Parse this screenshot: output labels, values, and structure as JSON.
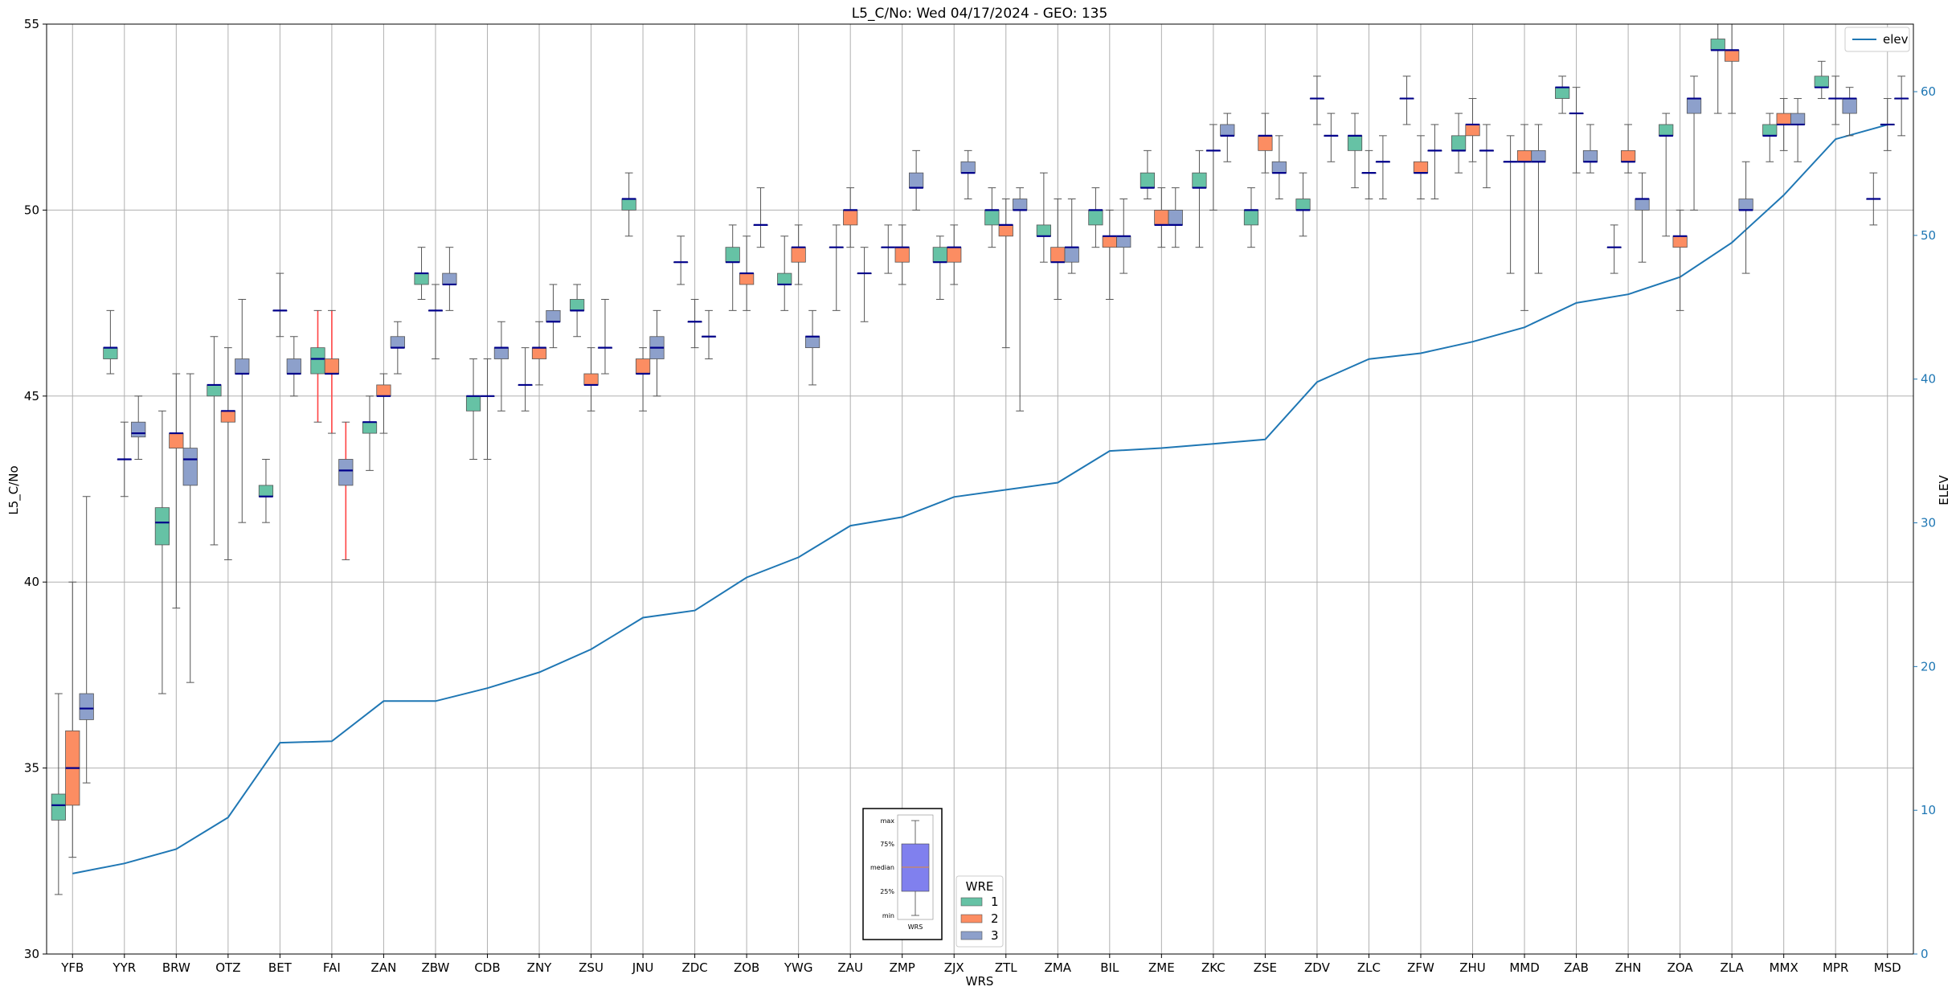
{
  "chart_data": {
    "type": "box",
    "title": "L5_C/No: Wed 04/17/2024 - GEO: 135",
    "xlabel": "WRS",
    "ylabel": "L5_C/No",
    "ylabel_right": "ELEV",
    "ylim": [
      30,
      55
    ],
    "ylim_right": [
      0,
      64.7
    ],
    "yticks": [
      30,
      35,
      40,
      45,
      50,
      55
    ],
    "yticks_right": [
      0,
      10,
      20,
      30,
      40,
      50,
      60
    ],
    "grid": true,
    "categories": [
      "YFB",
      "YYR",
      "BRW",
      "OTZ",
      "BET",
      "FAI",
      "ZAN",
      "ZBW",
      "CDB",
      "ZNY",
      "ZSU",
      "JNU",
      "ZDC",
      "ZOB",
      "YWG",
      "ZAU",
      "ZMP",
      "ZJX",
      "ZTL",
      "ZMA",
      "BIL",
      "ZME",
      "ZKC",
      "ZSE",
      "ZDV",
      "ZLC",
      "ZFW",
      "ZHU",
      "MMD",
      "ZAB",
      "ZHN",
      "ZOA",
      "ZLA",
      "MMX",
      "MPR",
      "MSD"
    ],
    "legend": {
      "title": "WRE",
      "entries": [
        "1",
        "2",
        "3"
      ],
      "placement": "bottom-center"
    },
    "line_legend": {
      "entries": [
        "elev"
      ],
      "placement": "upper-right"
    },
    "colors": {
      "wre1": "#66c2a5",
      "wre2": "#fc8d62",
      "wre3": "#8da0cb",
      "median": "#00008b",
      "whisker": "#555555",
      "elev": "#1f77b4",
      "highlight_whisker": "#ff4444"
    },
    "elev": [
      5.6,
      6.3,
      7.3,
      9.5,
      14.7,
      14.8,
      17.6,
      17.6,
      18.5,
      19.6,
      21.2,
      23.4,
      23.9,
      26.2,
      27.6,
      29.8,
      30.4,
      31.8,
      32.3,
      32.8,
      35.0,
      35.2,
      35.5,
      35.8,
      39.8,
      41.4,
      41.8,
      42.6,
      43.6,
      45.3,
      45.9,
      47.1,
      49.5,
      52.8,
      56.7,
      57.7
    ],
    "boxes": [
      {
        "cat": "YFB",
        "wre": 1,
        "min": 31.6,
        "q1": 33.6,
        "median": 34.0,
        "q3": 34.3,
        "max": 37.0
      },
      {
        "cat": "YFB",
        "wre": 2,
        "min": 32.6,
        "q1": 34.0,
        "median": 35.0,
        "q3": 36.0,
        "max": 40.0
      },
      {
        "cat": "YFB",
        "wre": 3,
        "min": 34.6,
        "q1": 36.3,
        "median": 36.6,
        "q3": 37.0,
        "max": 42.3
      },
      {
        "cat": "YYR",
        "wre": 1,
        "min": 45.6,
        "q1": 46.0,
        "median": 46.3,
        "q3": 46.3,
        "max": 47.3
      },
      {
        "cat": "YYR",
        "wre": 2,
        "min": 42.3,
        "q1": 43.3,
        "median": 43.3,
        "q3": 43.3,
        "max": 44.3
      },
      {
        "cat": "YYR",
        "wre": 3,
        "min": 43.3,
        "q1": 43.9,
        "median": 44.0,
        "q3": 44.3,
        "max": 45.0
      },
      {
        "cat": "BRW",
        "wre": 1,
        "min": 37.0,
        "q1": 41.0,
        "median": 41.6,
        "q3": 42.0,
        "max": 44.6
      },
      {
        "cat": "BRW",
        "wre": 2,
        "min": 39.3,
        "q1": 43.6,
        "median": 44.0,
        "q3": 44.0,
        "max": 45.6
      },
      {
        "cat": "BRW",
        "wre": 3,
        "min": 37.3,
        "q1": 42.6,
        "median": 43.3,
        "q3": 43.6,
        "max": 45.6
      },
      {
        "cat": "OTZ",
        "wre": 1,
        "min": 41.0,
        "q1": 45.0,
        "median": 45.3,
        "q3": 45.3,
        "max": 46.6
      },
      {
        "cat": "OTZ",
        "wre": 2,
        "min": 40.6,
        "q1": 44.3,
        "median": 44.6,
        "q3": 44.6,
        "max": 46.3
      },
      {
        "cat": "OTZ",
        "wre": 3,
        "min": 41.6,
        "q1": 45.6,
        "median": 45.6,
        "q3": 46.0,
        "max": 47.6
      },
      {
        "cat": "BET",
        "wre": 1,
        "min": 41.6,
        "q1": 42.3,
        "median": 42.3,
        "q3": 42.6,
        "max": 43.3
      },
      {
        "cat": "BET",
        "wre": 2,
        "min": 46.6,
        "q1": 47.3,
        "median": 47.3,
        "q3": 47.3,
        "max": 48.3
      },
      {
        "cat": "BET",
        "wre": 3,
        "min": 45.0,
        "q1": 45.6,
        "median": 45.6,
        "q3": 46.0,
        "max": 46.6
      },
      {
        "cat": "FAI",
        "wre": 1,
        "min": 44.3,
        "q1": 45.6,
        "median": 46.0,
        "q3": 46.3,
        "max": 47.3,
        "red": true
      },
      {
        "cat": "FAI",
        "wre": 2,
        "min": 44.0,
        "q1": 45.6,
        "median": 45.6,
        "q3": 46.0,
        "max": 47.3,
        "red": true
      },
      {
        "cat": "FAI",
        "wre": 3,
        "min": 40.6,
        "q1": 42.6,
        "median": 43.0,
        "q3": 43.3,
        "max": 44.3,
        "red": true
      },
      {
        "cat": "ZAN",
        "wre": 1,
        "min": 43.0,
        "q1": 44.0,
        "median": 44.3,
        "q3": 44.3,
        "max": 45.0
      },
      {
        "cat": "ZAN",
        "wre": 2,
        "min": 44.0,
        "q1": 45.0,
        "median": 45.0,
        "q3": 45.3,
        "max": 45.6
      },
      {
        "cat": "ZAN",
        "wre": 3,
        "min": 45.6,
        "q1": 46.3,
        "median": 46.3,
        "q3": 46.6,
        "max": 47.0
      },
      {
        "cat": "ZBW",
        "wre": 1,
        "min": 47.6,
        "q1": 48.0,
        "median": 48.3,
        "q3": 48.3,
        "max": 49.0
      },
      {
        "cat": "ZBW",
        "wre": 2,
        "min": 46.0,
        "q1": 47.3,
        "median": 47.3,
        "q3": 47.3,
        "max": 48.0
      },
      {
        "cat": "ZBW",
        "wre": 3,
        "min": 47.3,
        "q1": 48.0,
        "median": 48.0,
        "q3": 48.3,
        "max": 49.0
      },
      {
        "cat": "CDB",
        "wre": 1,
        "min": 43.3,
        "q1": 44.6,
        "median": 45.0,
        "q3": 45.0,
        "max": 46.0
      },
      {
        "cat": "CDB",
        "wre": 2,
        "min": 43.3,
        "q1": 45.0,
        "median": 45.0,
        "q3": 45.0,
        "max": 46.0
      },
      {
        "cat": "CDB",
        "wre": 3,
        "min": 44.6,
        "q1": 46.0,
        "median": 46.3,
        "q3": 46.3,
        "max": 47.0
      },
      {
        "cat": "ZNY",
        "wre": 1,
        "min": 44.6,
        "q1": 45.3,
        "median": 45.3,
        "q3": 45.3,
        "max": 46.3
      },
      {
        "cat": "ZNY",
        "wre": 2,
        "min": 45.3,
        "q1": 46.0,
        "median": 46.3,
        "q3": 46.3,
        "max": 47.0
      },
      {
        "cat": "ZNY",
        "wre": 3,
        "min": 46.3,
        "q1": 47.0,
        "median": 47.0,
        "q3": 47.3,
        "max": 48.0
      },
      {
        "cat": "ZSU",
        "wre": 1,
        "min": 46.6,
        "q1": 47.3,
        "median": 47.3,
        "q3": 47.6,
        "max": 48.0
      },
      {
        "cat": "ZSU",
        "wre": 2,
        "min": 44.6,
        "q1": 45.3,
        "median": 45.3,
        "q3": 45.6,
        "max": 46.3
      },
      {
        "cat": "ZSU",
        "wre": 3,
        "min": 45.6,
        "q1": 46.3,
        "median": 46.3,
        "q3": 46.3,
        "max": 47.6
      },
      {
        "cat": "JNU",
        "wre": 1,
        "min": 49.3,
        "q1": 50.0,
        "median": 50.3,
        "q3": 50.3,
        "max": 51.0
      },
      {
        "cat": "JNU",
        "wre": 2,
        "min": 44.6,
        "q1": 45.6,
        "median": 45.6,
        "q3": 46.0,
        "max": 46.3
      },
      {
        "cat": "JNU",
        "wre": 3,
        "min": 45.0,
        "q1": 46.0,
        "median": 46.3,
        "q3": 46.6,
        "max": 47.3
      },
      {
        "cat": "ZDC",
        "wre": 1,
        "min": 48.0,
        "q1": 48.6,
        "median": 48.6,
        "q3": 48.6,
        "max": 49.3
      },
      {
        "cat": "ZDC",
        "wre": 2,
        "min": 46.3,
        "q1": 47.0,
        "median": 47.0,
        "q3": 47.0,
        "max": 47.6
      },
      {
        "cat": "ZDC",
        "wre": 3,
        "min": 46.0,
        "q1": 46.6,
        "median": 46.6,
        "q3": 46.6,
        "max": 47.3
      },
      {
        "cat": "ZOB",
        "wre": 1,
        "min": 47.3,
        "q1": 48.6,
        "median": 48.6,
        "q3": 49.0,
        "max": 49.6
      },
      {
        "cat": "ZOB",
        "wre": 2,
        "min": 47.3,
        "q1": 48.0,
        "median": 48.3,
        "q3": 48.3,
        "max": 49.3
      },
      {
        "cat": "ZOB",
        "wre": 3,
        "min": 49.0,
        "q1": 49.6,
        "median": 49.6,
        "q3": 49.6,
        "max": 50.6
      },
      {
        "cat": "YWG",
        "wre": 1,
        "min": 47.3,
        "q1": 48.0,
        "median": 48.0,
        "q3": 48.3,
        "max": 49.3
      },
      {
        "cat": "YWG",
        "wre": 2,
        "min": 48.0,
        "q1": 48.6,
        "median": 49.0,
        "q3": 49.0,
        "max": 49.6
      },
      {
        "cat": "YWG",
        "wre": 3,
        "min": 45.3,
        "q1": 46.3,
        "median": 46.6,
        "q3": 46.6,
        "max": 47.3
      },
      {
        "cat": "ZAU",
        "wre": 1,
        "min": 47.3,
        "q1": 49.0,
        "median": 49.0,
        "q3": 49.0,
        "max": 49.6
      },
      {
        "cat": "ZAU",
        "wre": 2,
        "min": 49.0,
        "q1": 49.6,
        "median": 50.0,
        "q3": 50.0,
        "max": 50.6
      },
      {
        "cat": "ZAU",
        "wre": 3,
        "min": 47.0,
        "q1": 48.3,
        "median": 48.3,
        "q3": 48.3,
        "max": 49.0
      },
      {
        "cat": "ZMP",
        "wre": 1,
        "min": 48.3,
        "q1": 49.0,
        "median": 49.0,
        "q3": 49.0,
        "max": 49.6
      },
      {
        "cat": "ZMP",
        "wre": 2,
        "min": 48.0,
        "q1": 48.6,
        "median": 49.0,
        "q3": 49.0,
        "max": 49.6
      },
      {
        "cat": "ZMP",
        "wre": 3,
        "min": 50.0,
        "q1": 50.6,
        "median": 50.6,
        "q3": 51.0,
        "max": 51.6
      },
      {
        "cat": "ZJX",
        "wre": 1,
        "min": 47.6,
        "q1": 48.6,
        "median": 48.6,
        "q3": 49.0,
        "max": 49.3
      },
      {
        "cat": "ZJX",
        "wre": 2,
        "min": 48.0,
        "q1": 48.6,
        "median": 49.0,
        "q3": 49.0,
        "max": 49.6
      },
      {
        "cat": "ZJX",
        "wre": 3,
        "min": 50.3,
        "q1": 51.0,
        "median": 51.0,
        "q3": 51.3,
        "max": 51.6
      },
      {
        "cat": "ZTL",
        "wre": 1,
        "min": 49.0,
        "q1": 49.6,
        "median": 50.0,
        "q3": 50.0,
        "max": 50.6
      },
      {
        "cat": "ZTL",
        "wre": 2,
        "min": 46.3,
        "q1": 49.3,
        "median": 49.6,
        "q3": 49.6,
        "max": 50.3
      },
      {
        "cat": "ZTL",
        "wre": 3,
        "min": 44.6,
        "q1": 50.0,
        "median": 50.0,
        "q3": 50.3,
        "max": 50.6
      },
      {
        "cat": "ZMA",
        "wre": 1,
        "min": 48.6,
        "q1": 49.3,
        "median": 49.3,
        "q3": 49.6,
        "max": 51.0
      },
      {
        "cat": "ZMA",
        "wre": 2,
        "min": 47.6,
        "q1": 48.6,
        "median": 48.6,
        "q3": 49.0,
        "max": 50.3
      },
      {
        "cat": "ZMA",
        "wre": 3,
        "min": 48.3,
        "q1": 48.6,
        "median": 49.0,
        "q3": 49.0,
        "max": 50.3
      },
      {
        "cat": "BIL",
        "wre": 1,
        "min": 49.0,
        "q1": 49.6,
        "median": 50.0,
        "q3": 50.0,
        "max": 50.6
      },
      {
        "cat": "BIL",
        "wre": 2,
        "min": 47.6,
        "q1": 49.0,
        "median": 49.3,
        "q3": 49.3,
        "max": 50.0
      },
      {
        "cat": "BIL",
        "wre": 3,
        "min": 48.3,
        "q1": 49.0,
        "median": 49.3,
        "q3": 49.3,
        "max": 50.3
      },
      {
        "cat": "ZME",
        "wre": 1,
        "min": 50.3,
        "q1": 50.6,
        "median": 50.6,
        "q3": 51.0,
        "max": 51.6
      },
      {
        "cat": "ZME",
        "wre": 2,
        "min": 49.0,
        "q1": 49.6,
        "median": 49.6,
        "q3": 50.0,
        "max": 50.6
      },
      {
        "cat": "ZME",
        "wre": 3,
        "min": 49.0,
        "q1": 49.6,
        "median": 49.6,
        "q3": 50.0,
        "max": 50.6
      },
      {
        "cat": "ZKC",
        "wre": 1,
        "min": 49.0,
        "q1": 50.6,
        "median": 50.6,
        "q3": 51.0,
        "max": 51.6
      },
      {
        "cat": "ZKC",
        "wre": 2,
        "min": 50.0,
        "q1": 51.6,
        "median": 51.6,
        "q3": 51.6,
        "max": 52.3
      },
      {
        "cat": "ZKC",
        "wre": 3,
        "min": 51.3,
        "q1": 52.0,
        "median": 52.0,
        "q3": 52.3,
        "max": 52.6
      },
      {
        "cat": "ZSE",
        "wre": 1,
        "min": 49.0,
        "q1": 49.6,
        "median": 50.0,
        "q3": 50.0,
        "max": 50.6
      },
      {
        "cat": "ZSE",
        "wre": 2,
        "min": 51.0,
        "q1": 51.6,
        "median": 52.0,
        "q3": 52.0,
        "max": 52.6
      },
      {
        "cat": "ZSE",
        "wre": 3,
        "min": 50.3,
        "q1": 51.0,
        "median": 51.0,
        "q3": 51.3,
        "max": 52.0
      },
      {
        "cat": "ZDV",
        "wre": 1,
        "min": 49.3,
        "q1": 50.0,
        "median": 50.0,
        "q3": 50.3,
        "max": 51.0
      },
      {
        "cat": "ZDV",
        "wre": 2,
        "min": 52.3,
        "q1": 53.0,
        "median": 53.0,
        "q3": 53.0,
        "max": 53.6
      },
      {
        "cat": "ZDV",
        "wre": 3,
        "min": 51.3,
        "q1": 52.0,
        "median": 52.0,
        "q3": 52.0,
        "max": 52.6
      },
      {
        "cat": "ZLC",
        "wre": 1,
        "min": 50.6,
        "q1": 51.6,
        "median": 52.0,
        "q3": 52.0,
        "max": 52.6
      },
      {
        "cat": "ZLC",
        "wre": 2,
        "min": 50.3,
        "q1": 51.0,
        "median": 51.0,
        "q3": 51.0,
        "max": 51.6
      },
      {
        "cat": "ZLC",
        "wre": 3,
        "min": 50.3,
        "q1": 51.3,
        "median": 51.3,
        "q3": 51.3,
        "max": 52.0
      },
      {
        "cat": "ZFW",
        "wre": 1,
        "min": 52.3,
        "q1": 53.0,
        "median": 53.0,
        "q3": 53.0,
        "max": 53.6
      },
      {
        "cat": "ZFW",
        "wre": 2,
        "min": 50.3,
        "q1": 51.0,
        "median": 51.0,
        "q3": 51.3,
        "max": 52.0
      },
      {
        "cat": "ZFW",
        "wre": 3,
        "min": 50.3,
        "q1": 51.6,
        "median": 51.6,
        "q3": 51.6,
        "max": 52.3
      },
      {
        "cat": "ZHU",
        "wre": 1,
        "min": 51.0,
        "q1": 51.6,
        "median": 51.6,
        "q3": 52.0,
        "max": 52.6
      },
      {
        "cat": "ZHU",
        "wre": 2,
        "min": 51.3,
        "q1": 52.0,
        "median": 52.3,
        "q3": 52.3,
        "max": 53.0
      },
      {
        "cat": "ZHU",
        "wre": 3,
        "min": 50.6,
        "q1": 51.6,
        "median": 51.6,
        "q3": 51.6,
        "max": 52.3
      },
      {
        "cat": "MMD",
        "wre": 1,
        "min": 48.3,
        "q1": 51.3,
        "median": 51.3,
        "q3": 51.3,
        "max": 52.0
      },
      {
        "cat": "MMD",
        "wre": 2,
        "min": 47.3,
        "q1": 51.3,
        "median": 51.3,
        "q3": 51.6,
        "max": 52.3
      },
      {
        "cat": "MMD",
        "wre": 3,
        "min": 48.3,
        "q1": 51.3,
        "median": 51.3,
        "q3": 51.6,
        "max": 52.3
      },
      {
        "cat": "ZAB",
        "wre": 1,
        "min": 52.6,
        "q1": 53.0,
        "median": 53.3,
        "q3": 53.3,
        "max": 53.6
      },
      {
        "cat": "ZAB",
        "wre": 2,
        "min": 51.0,
        "q1": 52.6,
        "median": 52.6,
        "q3": 52.6,
        "max": 53.3
      },
      {
        "cat": "ZAB",
        "wre": 3,
        "min": 51.0,
        "q1": 51.3,
        "median": 51.3,
        "q3": 51.6,
        "max": 52.3
      },
      {
        "cat": "ZHN",
        "wre": 1,
        "min": 48.3,
        "q1": 49.0,
        "median": 49.0,
        "q3": 49.0,
        "max": 49.6
      },
      {
        "cat": "ZHN",
        "wre": 2,
        "min": 51.0,
        "q1": 51.3,
        "median": 51.3,
        "q3": 51.6,
        "max": 52.3
      },
      {
        "cat": "ZHN",
        "wre": 3,
        "min": 48.6,
        "q1": 50.0,
        "median": 50.3,
        "q3": 50.3,
        "max": 51.0
      },
      {
        "cat": "ZOA",
        "wre": 1,
        "min": 49.3,
        "q1": 52.0,
        "median": 52.0,
        "q3": 52.3,
        "max": 52.6
      },
      {
        "cat": "ZOA",
        "wre": 2,
        "min": 47.3,
        "q1": 49.0,
        "median": 49.3,
        "q3": 49.3,
        "max": 50.0
      },
      {
        "cat": "ZOA",
        "wre": 3,
        "min": 50.0,
        "q1": 52.6,
        "median": 53.0,
        "q3": 53.0,
        "max": 53.6
      },
      {
        "cat": "ZLA",
        "wre": 1,
        "min": 52.6,
        "q1": 54.3,
        "median": 54.3,
        "q3": 54.6,
        "max": 55.0
      },
      {
        "cat": "ZLA",
        "wre": 2,
        "min": 52.6,
        "q1": 54.0,
        "median": 54.3,
        "q3": 54.3,
        "max": 55.0
      },
      {
        "cat": "ZLA",
        "wre": 3,
        "min": 48.3,
        "q1": 50.0,
        "median": 50.0,
        "q3": 50.3,
        "max": 51.3
      },
      {
        "cat": "MMX",
        "wre": 1,
        "min": 51.3,
        "q1": 52.0,
        "median": 52.0,
        "q3": 52.3,
        "max": 52.6
      },
      {
        "cat": "MMX",
        "wre": 2,
        "min": 51.6,
        "q1": 52.3,
        "median": 52.3,
        "q3": 52.6,
        "max": 53.0
      },
      {
        "cat": "MMX",
        "wre": 3,
        "min": 51.3,
        "q1": 52.3,
        "median": 52.3,
        "q3": 52.6,
        "max": 53.0
      },
      {
        "cat": "MPR",
        "wre": 1,
        "min": 53.0,
        "q1": 53.3,
        "median": 53.3,
        "q3": 53.6,
        "max": 54.0
      },
      {
        "cat": "MPR",
        "wre": 2,
        "min": 52.3,
        "q1": 53.0,
        "median": 53.0,
        "q3": 53.0,
        "max": 53.6
      },
      {
        "cat": "MPR",
        "wre": 3,
        "min": 52.0,
        "q1": 52.6,
        "median": 53.0,
        "q3": 53.0,
        "max": 53.3
      },
      {
        "cat": "MSD",
        "wre": 1,
        "min": 49.6,
        "q1": 50.3,
        "median": 50.3,
        "q3": 50.3,
        "max": 51.0
      },
      {
        "cat": "MSD",
        "wre": 2,
        "min": 51.6,
        "q1": 52.3,
        "median": 52.3,
        "q3": 52.3,
        "max": 53.0
      },
      {
        "cat": "MSD",
        "wre": 3,
        "min": 52.0,
        "q1": 53.0,
        "median": 53.0,
        "q3": 53.0,
        "max": 53.6
      }
    ],
    "inset": {
      "labels": [
        "max",
        "75%",
        "median",
        "25%",
        "min"
      ],
      "xlabel": "WRS"
    }
  }
}
